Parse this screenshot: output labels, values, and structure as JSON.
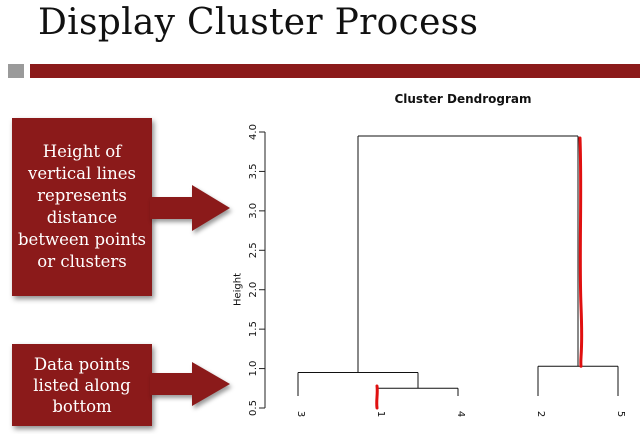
{
  "slide": {
    "title": "Display Cluster Process"
  },
  "callouts": {
    "top_lines": [
      "Height of",
      "vertical lines",
      "represents",
      "distance",
      "between points",
      "or clusters"
    ],
    "bottom_lines": [
      "Data points",
      "listed along",
      "bottom"
    ]
  },
  "colors": {
    "accent": "#8b1a1a",
    "gray_bar": "#9a9a9a",
    "annotation_red": "#e01010"
  },
  "chart_data": {
    "type": "dendrogram",
    "title": "Cluster Dendrogram",
    "ylabel": "Height",
    "ylim": [
      0.5,
      4.0
    ],
    "yticks": [
      "0.5",
      "1.0",
      "1.5",
      "2.0",
      "2.5",
      "3.0",
      "3.5",
      "4.0"
    ],
    "leaves": [
      "3",
      "1",
      "4",
      "2",
      "5"
    ],
    "merges": [
      {
        "left": "1",
        "right": "4",
        "height": 0.75
      },
      {
        "left": "3",
        "right": "1,4",
        "height": 0.95
      },
      {
        "left": "2",
        "right": "5",
        "height": 1.03
      },
      {
        "left": "3,1,4",
        "right": "2,5",
        "height": 3.95
      }
    ]
  }
}
